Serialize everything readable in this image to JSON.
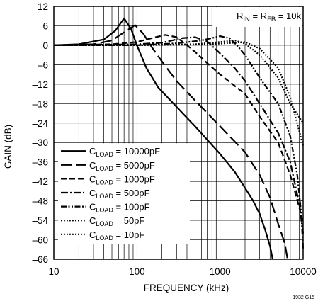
{
  "chart_data": {
    "type": "line",
    "title": "",
    "xlabel": "FREQUENCY (kHz)",
    "ylabel": "GAIN (dB)",
    "x_scale": "log",
    "xlim": [
      10,
      10000
    ],
    "ylim": [
      -66,
      12
    ],
    "grid": true,
    "x_ticks": [
      "10",
      "100",
      "1000",
      "10000"
    ],
    "y_ticks": [
      "12",
      "6",
      "0",
      "–6",
      "–12",
      "–18",
      "–24",
      "–30",
      "–36",
      "–42",
      "–48",
      "–54",
      "–60",
      "–66"
    ],
    "annotation": {
      "main": "R",
      "sub_in": "IN",
      "mid": " = R",
      "sub_fb": "FB",
      "tail": " = 10k"
    },
    "corner_label": "1932 G15",
    "legend_placement": "bottom-left",
    "series": [
      {
        "name": "C = 10000pF",
        "legend": {
          "main": "C",
          "sub": "LOAD",
          "tail": " = 10000pF"
        },
        "dash": "solid",
        "points": [
          [
            10,
            0
          ],
          [
            20,
            0.3
          ],
          [
            40,
            1.8
          ],
          [
            55,
            4.5
          ],
          [
            70,
            8.3
          ],
          [
            85,
            5
          ],
          [
            100,
            0
          ],
          [
            130,
            -7
          ],
          [
            180,
            -13
          ],
          [
            300,
            -19
          ],
          [
            500,
            -25
          ],
          [
            1000,
            -33.5
          ],
          [
            1500,
            -39
          ],
          [
            2000,
            -44
          ],
          [
            2500,
            -48
          ],
          [
            3000,
            -52
          ],
          [
            3500,
            -57
          ],
          [
            4000,
            -62
          ],
          [
            4300,
            -66
          ]
        ]
      },
      {
        "name": "C = 5000pF",
        "legend": {
          "main": "C",
          "sub": "LOAD",
          "tail": " = 5000pF"
        },
        "dash": "long-dash",
        "points": [
          [
            10,
            0
          ],
          [
            30,
            0.3
          ],
          [
            50,
            1.5
          ],
          [
            70,
            4
          ],
          [
            95,
            6.2
          ],
          [
            120,
            3.5
          ],
          [
            150,
            -0.5
          ],
          [
            200,
            -5
          ],
          [
            300,
            -11
          ],
          [
            500,
            -17
          ],
          [
            1000,
            -25
          ],
          [
            2000,
            -33
          ],
          [
            3000,
            -40
          ],
          [
            4000,
            -47
          ],
          [
            5000,
            -55
          ],
          [
            6000,
            -61
          ],
          [
            6500,
            -66
          ]
        ]
      },
      {
        "name": "C = 1000pF",
        "legend": {
          "main": "C",
          "sub": "LOAD",
          "tail": " = 1000pF"
        },
        "dash": "dash",
        "points": [
          [
            10,
            0
          ],
          [
            50,
            0.3
          ],
          [
            100,
            1
          ],
          [
            150,
            2.2
          ],
          [
            220,
            3.2
          ],
          [
            300,
            2.5
          ],
          [
            400,
            0
          ],
          [
            500,
            -2
          ],
          [
            700,
            -5.5
          ],
          [
            1000,
            -9
          ],
          [
            2000,
            -15
          ],
          [
            3000,
            -22
          ],
          [
            5000,
            -30
          ],
          [
            7000,
            -40
          ],
          [
            9000,
            -50
          ],
          [
            10000,
            -55
          ]
        ]
      },
      {
        "name": "C = 500pF",
        "legend": {
          "main": "C",
          "sub": "LOAD",
          "tail": " = 500pF"
        },
        "dash": "dash-dot",
        "points": [
          [
            10,
            0
          ],
          [
            100,
            0.3
          ],
          [
            200,
            0.8
          ],
          [
            350,
            2.2
          ],
          [
            500,
            2.5
          ],
          [
            700,
            1.2
          ],
          [
            1000,
            -2.5
          ],
          [
            1500,
            -7
          ],
          [
            2000,
            -11
          ],
          [
            3000,
            -18
          ],
          [
            5000,
            -27
          ],
          [
            7000,
            -36
          ],
          [
            9000,
            -49
          ],
          [
            10000,
            -58
          ]
        ]
      },
      {
        "name": "C = 100pF",
        "legend": {
          "main": "C",
          "sub": "LOAD",
          "tail": " = 100pF"
        },
        "dash": "dash-dot-dot",
        "points": [
          [
            10,
            0
          ],
          [
            100,
            0
          ],
          [
            300,
            0.6
          ],
          [
            600,
            1.5
          ],
          [
            1000,
            2.8
          ],
          [
            1300,
            2.2
          ],
          [
            1600,
            0
          ],
          [
            2000,
            -3
          ],
          [
            3000,
            -10
          ],
          [
            5000,
            -18
          ],
          [
            7000,
            -28
          ],
          [
            8500,
            -40
          ],
          [
            9500,
            -52
          ],
          [
            10000,
            -63
          ]
        ]
      },
      {
        "name": "C = 50pF",
        "legend": {
          "main": "C",
          "sub": "LOAD",
          "tail": " = 50pF"
        },
        "dash": "dot",
        "points": [
          [
            10,
            0
          ],
          [
            100,
            0
          ],
          [
            500,
            0.3
          ],
          [
            1000,
            1
          ],
          [
            1500,
            1.5
          ],
          [
            2000,
            0.5
          ],
          [
            3000,
            -3
          ],
          [
            5000,
            -10
          ],
          [
            7000,
            -18
          ],
          [
            10000,
            -24
          ]
        ]
      },
      {
        "name": "C = 10pF",
        "legend": {
          "main": "C",
          "sub": "LOAD",
          "tail": " = 10pF"
        },
        "dash": "dot",
        "points": [
          [
            10,
            0
          ],
          [
            100,
            0
          ],
          [
            500,
            0.2
          ],
          [
            1000,
            0.5
          ],
          [
            2000,
            1
          ],
          [
            3000,
            -1
          ],
          [
            5000,
            -7
          ],
          [
            7000,
            -16
          ],
          [
            10000,
            -31
          ]
        ]
      }
    ]
  }
}
